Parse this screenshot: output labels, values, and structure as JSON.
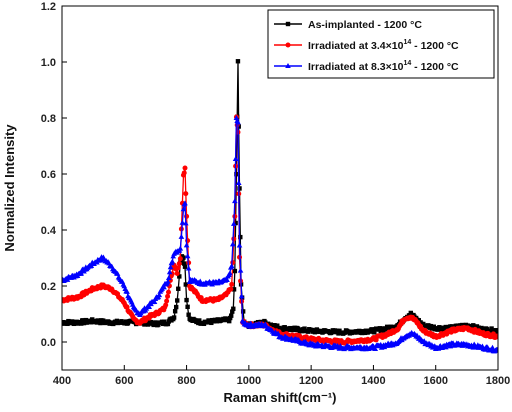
{
  "chart_data": {
    "type": "line",
    "xlabel": "Raman shift(cm⁻¹)",
    "ylabel": "Normalized Intensity",
    "xlim": [
      400,
      1800
    ],
    "ylim": [
      -0.1,
      1.2
    ],
    "xticks": [
      "400",
      "600",
      "800",
      "1000",
      "1200",
      "1400",
      "1600",
      "1800"
    ],
    "yticks": [
      "0.0",
      "0.2",
      "0.4",
      "0.6",
      "0.8",
      "1.0",
      "1.2"
    ],
    "legend_position": "top-right",
    "grid": false,
    "series": [
      {
        "name": "As-implanted - 1200 °C",
        "legend": {
          "pre": "As-implanted - 1200 ",
          "sup": "",
          "post": "",
          "unit": "°C"
        },
        "color": "#000000",
        "marker": "square",
        "points": [
          [
            400,
            0.07
          ],
          [
            450,
            0.07
          ],
          [
            500,
            0.075
          ],
          [
            550,
            0.07
          ],
          [
            600,
            0.07
          ],
          [
            650,
            0.07
          ],
          [
            700,
            0.065
          ],
          [
            740,
            0.07
          ],
          [
            760,
            0.09
          ],
          [
            770,
            0.15
          ],
          [
            780,
            0.28
          ],
          [
            785,
            0.31
          ],
          [
            790,
            0.3
          ],
          [
            795,
            0.27
          ],
          [
            800,
            0.15
          ],
          [
            810,
            0.08
          ],
          [
            850,
            0.07
          ],
          [
            900,
            0.075
          ],
          [
            940,
            0.08
          ],
          [
            950,
            0.12
          ],
          [
            955,
            0.25
          ],
          [
            960,
            0.6
          ],
          [
            965,
            1.0
          ],
          [
            970,
            0.55
          ],
          [
            975,
            0.2
          ],
          [
            985,
            0.07
          ],
          [
            1000,
            0.06
          ],
          [
            1050,
            0.07
          ],
          [
            1100,
            0.05
          ],
          [
            1200,
            0.04
          ],
          [
            1300,
            0.035
          ],
          [
            1400,
            0.04
          ],
          [
            1450,
            0.05
          ],
          [
            1480,
            0.06
          ],
          [
            1500,
            0.085
          ],
          [
            1520,
            0.1
          ],
          [
            1540,
            0.08
          ],
          [
            1560,
            0.06
          ],
          [
            1600,
            0.05
          ],
          [
            1650,
            0.05
          ],
          [
            1700,
            0.06
          ],
          [
            1750,
            0.045
          ],
          [
            1800,
            0.04
          ]
        ]
      },
      {
        "name": "Irradiated at 3.4×10¹⁴ - 1200 °C",
        "legend": {
          "pre": "Irradiated at 3.4×10",
          "sup": "14",
          "post": " - 1200 ",
          "unit": "°C"
        },
        "color": "#ff0000",
        "marker": "circle",
        "points": [
          [
            400,
            0.15
          ],
          [
            450,
            0.16
          ],
          [
            500,
            0.19
          ],
          [
            530,
            0.2
          ],
          [
            560,
            0.19
          ],
          [
            600,
            0.14
          ],
          [
            630,
            0.08
          ],
          [
            650,
            0.07
          ],
          [
            680,
            0.09
          ],
          [
            700,
            0.1
          ],
          [
            730,
            0.12
          ],
          [
            760,
            0.28
          ],
          [
            770,
            0.25
          ],
          [
            780,
            0.3
          ],
          [
            790,
            0.6
          ],
          [
            795,
            0.62
          ],
          [
            800,
            0.45
          ],
          [
            810,
            0.2
          ],
          [
            850,
            0.15
          ],
          [
            900,
            0.15
          ],
          [
            930,
            0.17
          ],
          [
            945,
            0.2
          ],
          [
            955,
            0.45
          ],
          [
            960,
            0.8
          ],
          [
            965,
            0.75
          ],
          [
            970,
            0.3
          ],
          [
            980,
            0.07
          ],
          [
            1000,
            0.06
          ],
          [
            1050,
            0.06
          ],
          [
            1100,
            0.03
          ],
          [
            1200,
            0.01
          ],
          [
            1300,
            0.0
          ],
          [
            1400,
            0.01
          ],
          [
            1450,
            0.03
          ],
          [
            1480,
            0.05
          ],
          [
            1500,
            0.085
          ],
          [
            1520,
            0.09
          ],
          [
            1540,
            0.07
          ],
          [
            1560,
            0.04
          ],
          [
            1600,
            0.02
          ],
          [
            1650,
            0.04
          ],
          [
            1700,
            0.05
          ],
          [
            1750,
            0.03
          ],
          [
            1800,
            0.02
          ]
        ]
      },
      {
        "name": "Irradiated at 8.3×10¹⁴ - 1200 °C",
        "legend": {
          "pre": "Irradiated at 8.3×10",
          "sup": "14",
          "post": " - 1200 ",
          "unit": "°C"
        },
        "color": "#0000ff",
        "marker": "triangle",
        "points": [
          [
            400,
            0.22
          ],
          [
            450,
            0.24
          ],
          [
            500,
            0.28
          ],
          [
            530,
            0.3
          ],
          [
            560,
            0.27
          ],
          [
            600,
            0.2
          ],
          [
            630,
            0.12
          ],
          [
            650,
            0.1
          ],
          [
            680,
            0.13
          ],
          [
            700,
            0.15
          ],
          [
            740,
            0.22
          ],
          [
            760,
            0.32
          ],
          [
            780,
            0.33
          ],
          [
            790,
            0.48
          ],
          [
            795,
            0.5
          ],
          [
            800,
            0.35
          ],
          [
            810,
            0.22
          ],
          [
            850,
            0.21
          ],
          [
            900,
            0.21
          ],
          [
            930,
            0.22
          ],
          [
            945,
            0.27
          ],
          [
            955,
            0.5
          ],
          [
            960,
            0.8
          ],
          [
            965,
            0.78
          ],
          [
            970,
            0.35
          ],
          [
            980,
            0.07
          ],
          [
            1000,
            0.06
          ],
          [
            1050,
            0.06
          ],
          [
            1100,
            0.02
          ],
          [
            1200,
            -0.01
          ],
          [
            1300,
            -0.02
          ],
          [
            1400,
            -0.02
          ],
          [
            1450,
            -0.01
          ],
          [
            1480,
            0.0
          ],
          [
            1500,
            0.02
          ],
          [
            1520,
            0.03
          ],
          [
            1540,
            0.02
          ],
          [
            1560,
            0.0
          ],
          [
            1600,
            -0.02
          ],
          [
            1650,
            -0.01
          ],
          [
            1700,
            -0.01
          ],
          [
            1750,
            -0.02
          ],
          [
            1800,
            -0.03
          ]
        ]
      }
    ]
  }
}
